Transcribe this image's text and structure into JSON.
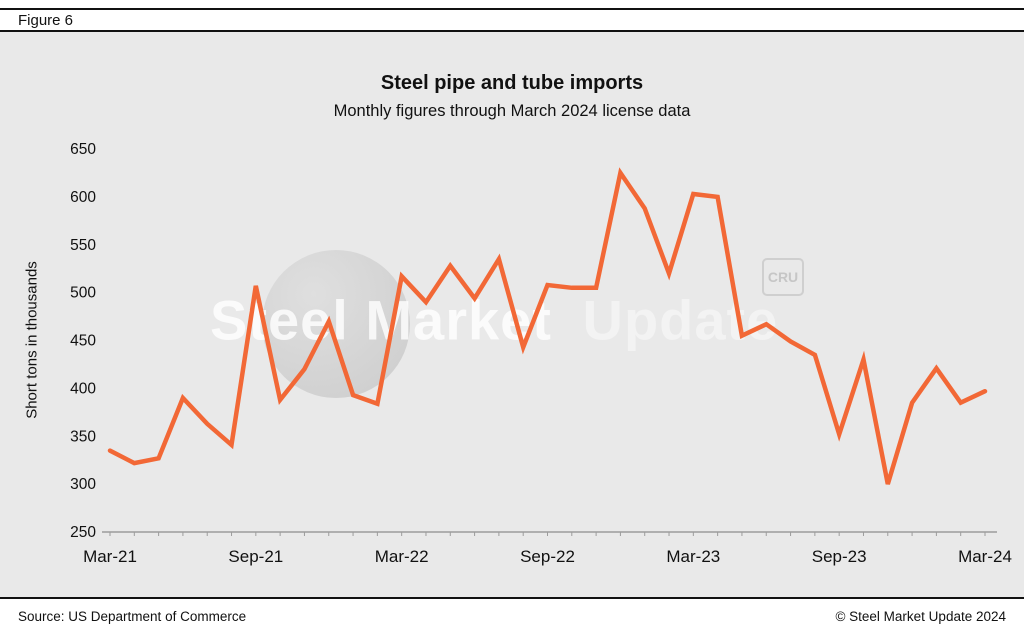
{
  "figure_label": "Figure 6",
  "watermark": {
    "text_primary": "Steel Market",
    "text_secondary": "Update",
    "logo": "CRU"
  },
  "footer": {
    "source": "Source: US Department of Commerce",
    "copyright": "© Steel Market Update 2024"
  },
  "chart_data": {
    "type": "line",
    "title": "Steel pipe and tube imports",
    "subtitle": "Monthly figures through March 2024 license data",
    "ylabel": "Short tons in thousands",
    "ylim": [
      250,
      650
    ],
    "ytick_step": 50,
    "grid": false,
    "legend_position": "none",
    "line_color": "#F26836",
    "x_tick_labels": [
      "Mar-21",
      "Sep-21",
      "Mar-22",
      "Sep-22",
      "Mar-23",
      "Sep-23",
      "Mar-24"
    ],
    "x": [
      "Mar-21",
      "Apr-21",
      "May-21",
      "Jun-21",
      "Jul-21",
      "Aug-21",
      "Sep-21",
      "Oct-21",
      "Nov-21",
      "Dec-21",
      "Jan-22",
      "Feb-22",
      "Mar-22",
      "Apr-22",
      "May-22",
      "Jun-22",
      "Jul-22",
      "Aug-22",
      "Sep-22",
      "Oct-22",
      "Nov-22",
      "Dec-22",
      "Jan-23",
      "Feb-23",
      "Mar-23",
      "Apr-23",
      "May-23",
      "Jun-23",
      "Jul-23",
      "Aug-23",
      "Sep-23",
      "Oct-23",
      "Nov-23",
      "Dec-23",
      "Jan-24",
      "Feb-24",
      "Mar-24"
    ],
    "values": [
      335,
      322,
      327,
      390,
      363,
      341,
      507,
      388,
      420,
      470,
      393,
      384,
      517,
      490,
      528,
      494,
      535,
      443,
      508,
      505,
      505,
      625,
      588,
      520,
      603,
      600,
      455,
      467,
      449,
      435,
      352,
      430,
      300,
      385,
      421,
      385,
      397
    ]
  }
}
